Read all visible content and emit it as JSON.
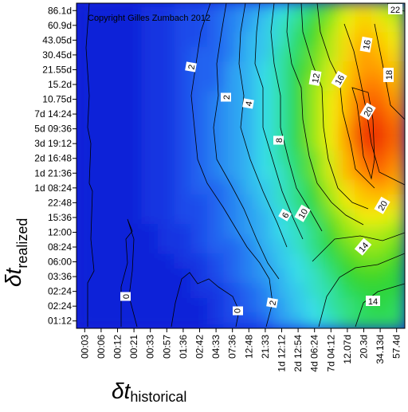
{
  "chart_data": {
    "type": "heatmap",
    "title": "",
    "copyright": "Copyright Gilles Zumbach 2012",
    "xlabel_symbol": "δt",
    "xlabel_sub": "historical",
    "ylabel_symbol": "δt",
    "ylabel_sub": "realized",
    "x_ticks": [
      "00:03",
      "00:06",
      "00:12",
      "00:21",
      "00:33",
      "00:57",
      "01:36",
      "02:42",
      "04:33",
      "07:36",
      "12:48",
      "21:33",
      "1d 12:12",
      "2d 12:54",
      "4d 06:24",
      "7d 04:12",
      "12.07d",
      "20.3d",
      "34.13d",
      "57.4d"
    ],
    "y_ticks": [
      "86.1d",
      "60.9d",
      "43.05d",
      "30.45d",
      "21.55d",
      "15.2d",
      "10.75d",
      "7d 14:24",
      "5d 09:36",
      "3d 19:12",
      "2d 16:48",
      "1d 21:36",
      "1d 08:24",
      "22:48",
      "15:36",
      "12:00",
      "08:24",
      "06:00",
      "03:36",
      "02:24",
      "02:24",
      "01:12"
    ],
    "values": [
      [
        0,
        0,
        0,
        0,
        1,
        1,
        2,
        2,
        3,
        4,
        5,
        6,
        8,
        10,
        12,
        15,
        18,
        20,
        18,
        16
      ],
      [
        0,
        0,
        0,
        0,
        1,
        1,
        2,
        2,
        3,
        4,
        5,
        7,
        9,
        11,
        14,
        16,
        19,
        21,
        20,
        18
      ],
      [
        0,
        0,
        0,
        0,
        1,
        1,
        2,
        2,
        3,
        4,
        6,
        7,
        9,
        12,
        14,
        17,
        20,
        22,
        21,
        19
      ],
      [
        0,
        0,
        0,
        0,
        1,
        1,
        2,
        3,
        3,
        4,
        6,
        7,
        10,
        12,
        15,
        17,
        20,
        23,
        22,
        20
      ],
      [
        0,
        0,
        0,
        0,
        1,
        1,
        2,
        3,
        3,
        5,
        6,
        8,
        10,
        13,
        15,
        18,
        21,
        23,
        23,
        21
      ],
      [
        0,
        0,
        0,
        0,
        1,
        1,
        2,
        3,
        3,
        5,
        6,
        8,
        10,
        13,
        16,
        18,
        21,
        24,
        24,
        22
      ],
      [
        0,
        0,
        0,
        0,
        1,
        1,
        2,
        3,
        4,
        5,
        6,
        8,
        10,
        13,
        16,
        19,
        22,
        25,
        25,
        23
      ],
      [
        0,
        0,
        0,
        0,
        1,
        1,
        2,
        3,
        4,
        5,
        6,
        8,
        10,
        13,
        16,
        19,
        22,
        26,
        26,
        24
      ],
      [
        0,
        0,
        0,
        0,
        1,
        1,
        2,
        3,
        4,
        5,
        6,
        8,
        10,
        13,
        16,
        19,
        23,
        27,
        27,
        25
      ],
      [
        0,
        0,
        0,
        0,
        1,
        1,
        2,
        3,
        4,
        5,
        6,
        8,
        10,
        13,
        16,
        19,
        23,
        27,
        27,
        25
      ],
      [
        0,
        0,
        0,
        0,
        1,
        1,
        2,
        3,
        4,
        5,
        6,
        8,
        10,
        12,
        15,
        18,
        22,
        25,
        26,
        24
      ],
      [
        0,
        0,
        0,
        0,
        1,
        1,
        2,
        3,
        4,
        5,
        6,
        8,
        9,
        12,
        15,
        18,
        22,
        24,
        25,
        23
      ],
      [
        0,
        0,
        0,
        0,
        1,
        1,
        2,
        3,
        3,
        4,
        6,
        7,
        9,
        11,
        14,
        17,
        20,
        22,
        23,
        22
      ],
      [
        0,
        0,
        0,
        0,
        1,
        1,
        2,
        2,
        3,
        4,
        5,
        7,
        9,
        11,
        13,
        16,
        19,
        21,
        21,
        20
      ],
      [
        0,
        0,
        0,
        0,
        1,
        1,
        2,
        2,
        3,
        4,
        5,
        6,
        8,
        10,
        12,
        15,
        17,
        19,
        19,
        18
      ],
      [
        0,
        0,
        0,
        0,
        0,
        1,
        1,
        2,
        3,
        4,
        5,
        6,
        8,
        9,
        11,
        14,
        16,
        17,
        17,
        16
      ],
      [
        0,
        0,
        0,
        0,
        0,
        1,
        1,
        2,
        3,
        3,
        4,
        6,
        7,
        9,
        11,
        13,
        15,
        16,
        16,
        15
      ],
      [
        0,
        0,
        0,
        0,
        0,
        0,
        1,
        1,
        2,
        3,
        4,
        5,
        7,
        8,
        10,
        12,
        14,
        15,
        15,
        14
      ],
      [
        0,
        0,
        0,
        0,
        0,
        0,
        0,
        1,
        2,
        3,
        4,
        5,
        6,
        8,
        9,
        11,
        13,
        14,
        14,
        13
      ],
      [
        0,
        0,
        0,
        0,
        0,
        0,
        0,
        1,
        1,
        2,
        3,
        4,
        6,
        7,
        9,
        10,
        12,
        13,
        13,
        13
      ],
      [
        0,
        0,
        0,
        0,
        0,
        0,
        0,
        0,
        1,
        2,
        3,
        4,
        5,
        7,
        8,
        10,
        11,
        12,
        13,
        12
      ],
      [
        0,
        0,
        0,
        0,
        0,
        0,
        0,
        0,
        1,
        2,
        2,
        3,
        5,
        6,
        8,
        9,
        11,
        12,
        12,
        12
      ]
    ],
    "contour_labels": [
      "0",
      "0",
      "2",
      "2",
      "2",
      "4",
      "6",
      "8",
      "10",
      "12",
      "14",
      "14",
      "16",
      "16",
      "18",
      "20",
      "20",
      "22"
    ],
    "color_scale": [
      "#1020d8",
      "#1e5cf0",
      "#30a8f4",
      "#38e0e6",
      "#30e08a",
      "#2ed42a",
      "#9ee818",
      "#f0f010",
      "#ffc000",
      "#ff7a00",
      "#f03a00"
    ]
  }
}
